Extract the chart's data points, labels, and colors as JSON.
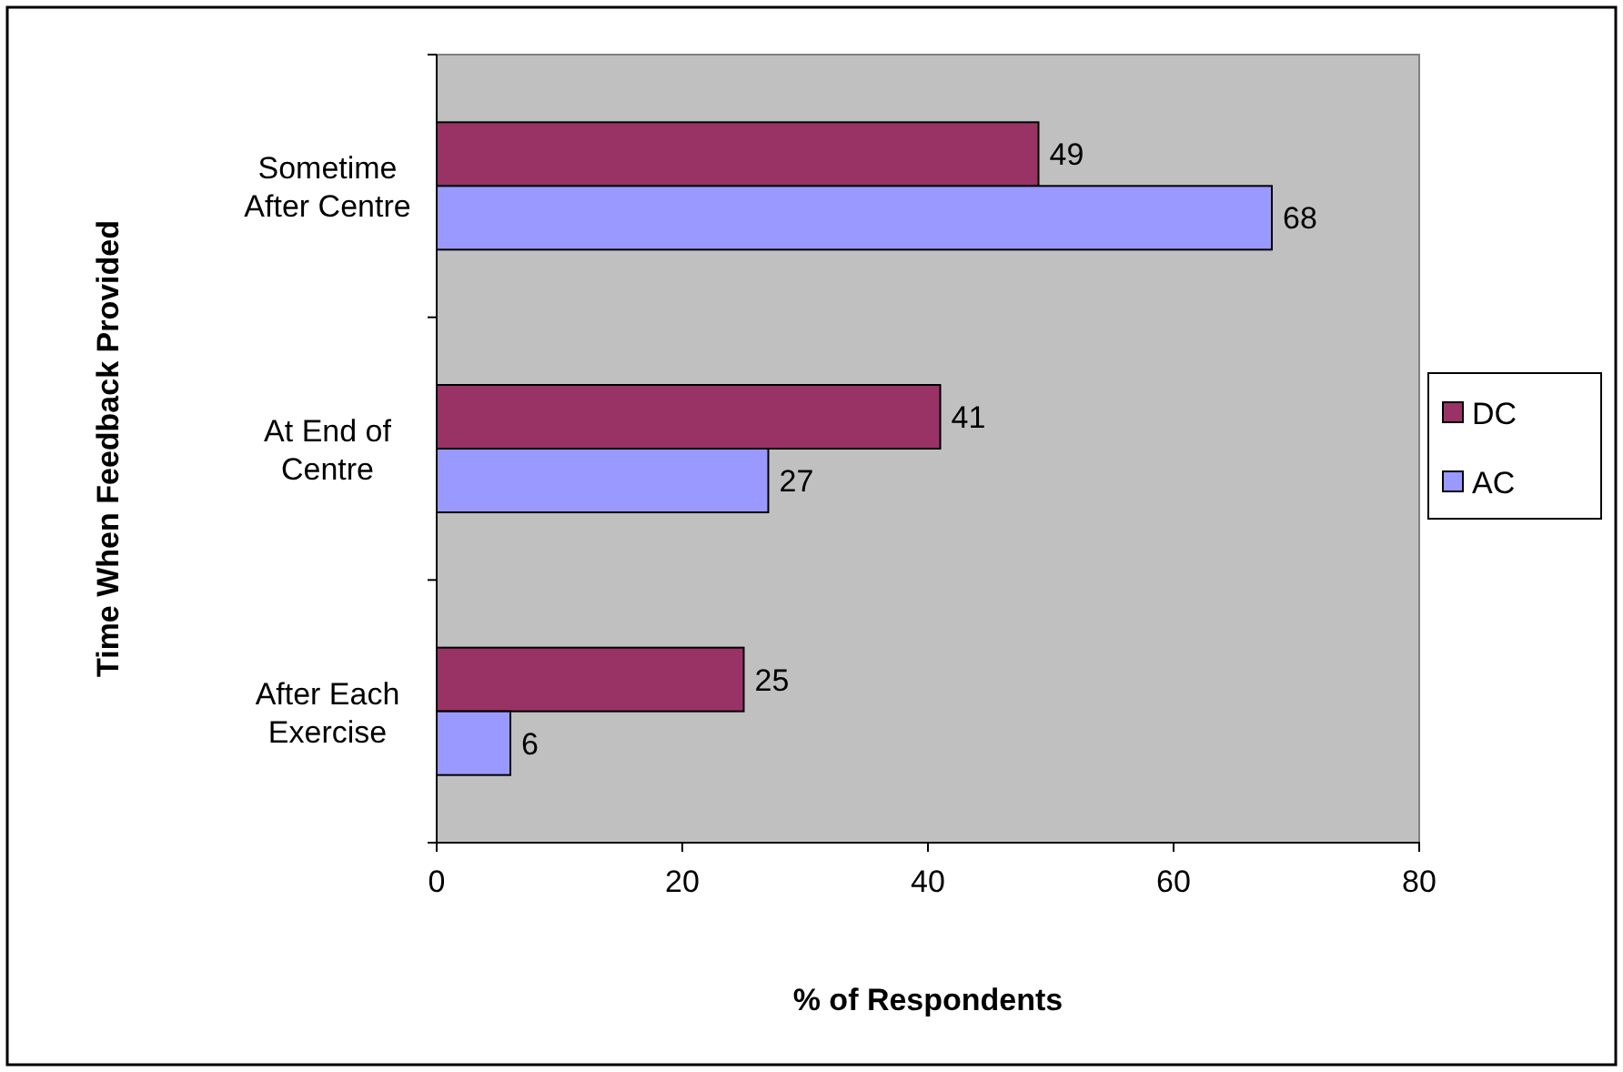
{
  "chart_data": {
    "type": "bar",
    "orientation": "horizontal",
    "xlabel": "% of Respondents",
    "ylabel": "Time When Feedback Provided",
    "categories": [
      "Sometime After Centre",
      "At End of Centre",
      "After Each Exercise"
    ],
    "series": [
      {
        "name": "DC",
        "color": "#993366",
        "values": [
          49,
          41,
          25
        ]
      },
      {
        "name": "AC",
        "color": "#9999ff",
        "values": [
          68,
          27,
          6
        ]
      }
    ],
    "xlim": [
      0,
      80
    ],
    "xticks": [
      0,
      20,
      40,
      60,
      80
    ],
    "data_labels": true,
    "legend": "right",
    "grid": false
  }
}
